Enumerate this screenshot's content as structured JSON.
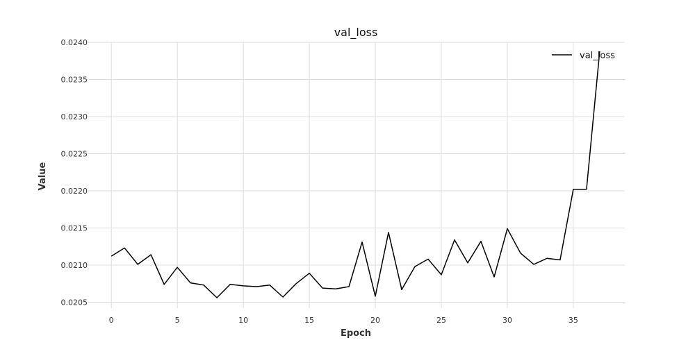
{
  "chart_data": {
    "type": "line",
    "title": "val_loss",
    "xlabel": "Epoch",
    "ylabel": "Value",
    "xlim": [
      -1.8,
      38.9
    ],
    "ylim": [
      0.02042,
      0.024
    ],
    "xticks": [
      0,
      5,
      10,
      15,
      20,
      25,
      30,
      35
    ],
    "yticks": [
      0.0205,
      0.021,
      0.0215,
      0.022,
      0.0225,
      0.023,
      0.0235,
      0.024
    ],
    "ytick_labels": [
      "0.0205",
      "0.0210",
      "0.0215",
      "0.0220",
      "0.0225",
      "0.0230",
      "0.0235",
      "0.0240"
    ],
    "grid": true,
    "legend_position": "top-right",
    "series": [
      {
        "name": "val_loss",
        "color": "#000000",
        "x": [
          0,
          1,
          2,
          3,
          4,
          5,
          6,
          7,
          8,
          9,
          10,
          11,
          12,
          13,
          14,
          15,
          16,
          17,
          18,
          19,
          20,
          21,
          22,
          23,
          24,
          25,
          26,
          27,
          28,
          29,
          30,
          31,
          32,
          33,
          34,
          35,
          36,
          37
        ],
        "y": [
          0.02112,
          0.02123,
          0.02101,
          0.02114,
          0.02074,
          0.02097,
          0.02076,
          0.02073,
          0.02056,
          0.02074,
          0.02072,
          0.02071,
          0.02073,
          0.02057,
          0.02075,
          0.02089,
          0.02069,
          0.02068,
          0.02071,
          0.02131,
          0.02058,
          0.02144,
          0.02067,
          0.02098,
          0.02108,
          0.02087,
          0.02134,
          0.02103,
          0.02132,
          0.02084,
          0.02149,
          0.02116,
          0.02101,
          0.02109,
          0.02107,
          0.02202,
          0.02202,
          0.02388
        ]
      }
    ]
  }
}
